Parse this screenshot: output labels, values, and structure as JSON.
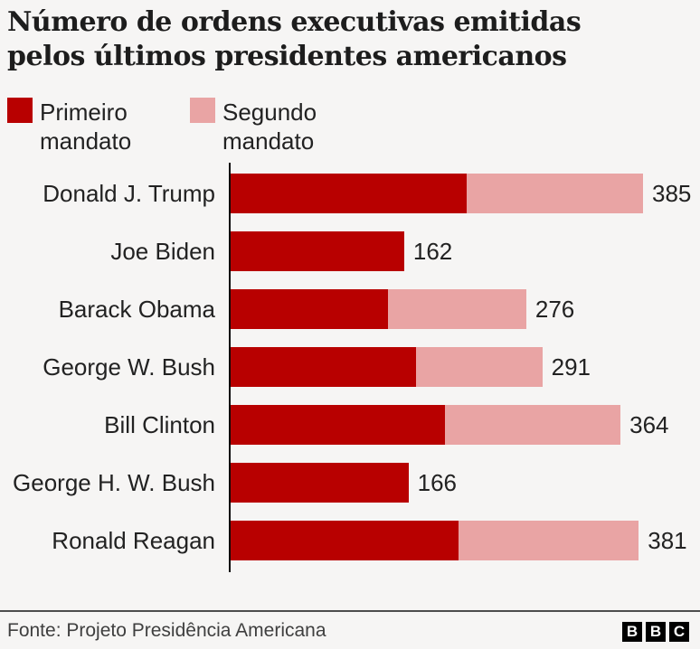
{
  "title": "Número de ordens executivas emitidas pelos últimos presidentes americanos",
  "legend": {
    "items": [
      {
        "label": "Primeiro mandato",
        "color": "#b80000"
      },
      {
        "label": "Segundo mandato",
        "color": "#e9a4a4"
      }
    ]
  },
  "chart_data": {
    "type": "bar",
    "orientation": "horizontal",
    "stacked": true,
    "title": "Número de ordens executivas emitidas pelos últimos presidentes americanos",
    "categories": [
      "Donald J. Trump",
      "Joe Biden",
      "Barack Obama",
      "George W. Bush",
      "Bill Clinton",
      "George H. W. Bush",
      "Ronald Reagan"
    ],
    "series": [
      {
        "name": "Primeiro mandato",
        "color": "#b80000",
        "values": [
          220,
          162,
          147,
          173,
          200,
          166,
          213
        ]
      },
      {
        "name": "Segundo mandato",
        "color": "#e9a4a4",
        "values": [
          165,
          0,
          129,
          118,
          164,
          0,
          168
        ]
      }
    ],
    "totals": [
      385,
      162,
      276,
      291,
      364,
      166,
      381
    ],
    "xlim": [
      0,
      385
    ],
    "legend_position": "top",
    "grid": false
  },
  "footer": {
    "source": "Fonte: Projeto Presidência Americana",
    "logo_letters": [
      "B",
      "B",
      "C"
    ]
  }
}
